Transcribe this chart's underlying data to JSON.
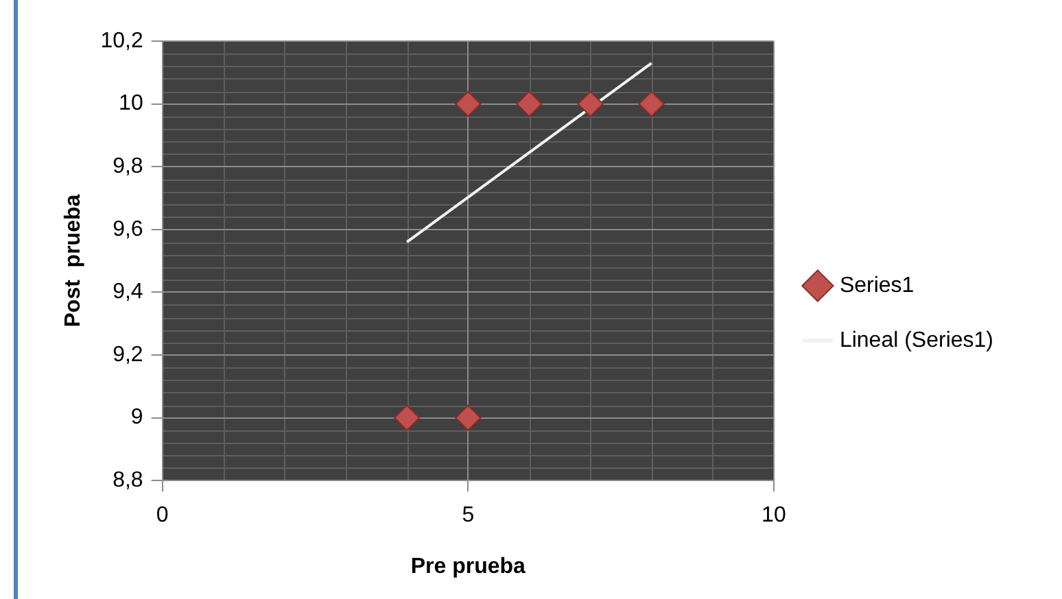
{
  "chart_data": {
    "type": "scatter",
    "xlabel": "Pre prueba",
    "ylabel": "Post  prueba",
    "xlim": [
      0,
      10
    ],
    "xticks": [
      0,
      5,
      10
    ],
    "ylim": [
      8.8,
      10.2
    ],
    "yticks": [
      {
        "value": 8.8,
        "label": "8,8"
      },
      {
        "value": 9,
        "label": "9"
      },
      {
        "value": 9.2,
        "label": "9,2"
      },
      {
        "value": 9.4,
        "label": "9,4"
      },
      {
        "value": 9.6,
        "label": "9,6"
      },
      {
        "value": 9.8,
        "label": "9,8"
      },
      {
        "value": 10,
        "label": "10"
      },
      {
        "value": 10.2,
        "label": "10,2"
      }
    ],
    "grid": true,
    "legend": "right",
    "series": [
      {
        "name": "Series1",
        "color": "#c0504d",
        "marker": "diamond",
        "x": [
          4,
          5,
          5,
          6,
          7,
          8
        ],
        "values": [
          9,
          9,
          10,
          10,
          10,
          10
        ]
      },
      {
        "name": "Lineal (Series1)",
        "type": "line",
        "color": "#f2f2f2",
        "marker": "none",
        "x": [
          4,
          8
        ],
        "values": [
          9.56,
          10.13
        ]
      }
    ]
  }
}
